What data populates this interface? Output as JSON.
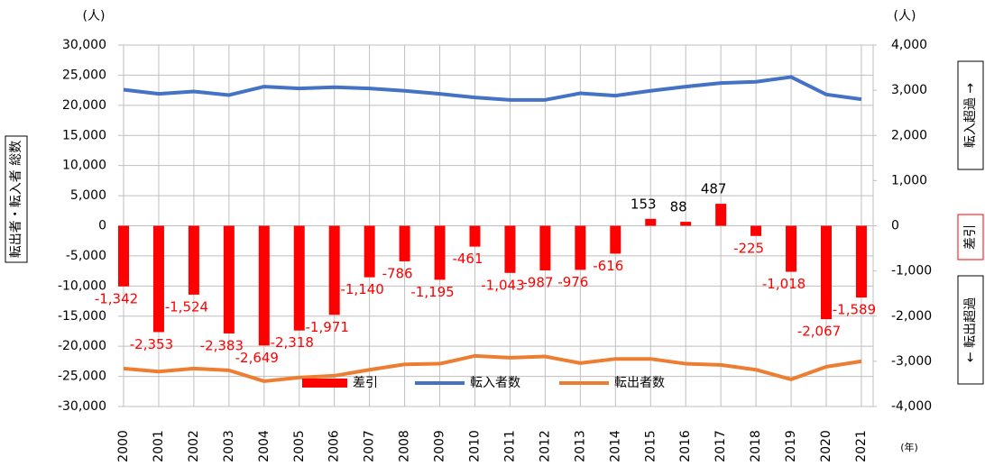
{
  "chart_data": {
    "type": "bar_line",
    "y_unit": "(人)",
    "y2_unit": "(人)",
    "x_unit": "(年)",
    "y_label": "転出者・転入者 総数",
    "y2_label_top": "転入超過 →",
    "y2_label_mid": "差引",
    "y2_label_bottom": "← 転出超過",
    "categories": [
      "2000",
      "2001",
      "2002",
      "2003",
      "2004",
      "2005",
      "2006",
      "2007",
      "2008",
      "2009",
      "2010",
      "2011",
      "2012",
      "2013",
      "2014",
      "2015",
      "2016",
      "2017",
      "2018",
      "2019",
      "2020",
      "2021"
    ],
    "series": [
      {
        "name": "差引",
        "type": "bar",
        "axis": "y2",
        "color": "#ff0000",
        "values": [
          -1342,
          -2353,
          -1524,
          -2383,
          -2649,
          -2318,
          -1971,
          -1140,
          -786,
          -1195,
          -461,
          -1043,
          -987,
          -976,
          -616,
          153,
          88,
          487,
          -225,
          -1018,
          -2067,
          -1589
        ],
        "value_labels": [
          "-1,342",
          "-2,353",
          "-1,524",
          "-2,383",
          "-2,649",
          "-2,318",
          "-1,971",
          "-1,140",
          "-786",
          "-1,195",
          "-461",
          "-1,043",
          "-987",
          "-976",
          "-616",
          "153",
          "88",
          "487",
          "-225",
          "-1,018",
          "-2,067",
          "-1,589"
        ]
      },
      {
        "name": "転入者数",
        "type": "line",
        "axis": "y",
        "color": "#4472c4",
        "values": [
          22600,
          21900,
          22300,
          21700,
          23100,
          22800,
          23000,
          22800,
          22400,
          21900,
          21300,
          20900,
          20900,
          22000,
          21600,
          22400,
          23100,
          23700,
          23900,
          24700,
          21800,
          21000
        ]
      },
      {
        "name": "転出者数",
        "type": "line",
        "axis": "y",
        "color": "#ed7d31",
        "values": [
          -23700,
          -24200,
          -23700,
          -24000,
          -25800,
          -25200,
          -24900,
          -23900,
          -23000,
          -22900,
          -21600,
          -21900,
          -21700,
          -22800,
          -22100,
          -22100,
          -22900,
          -23100,
          -23900,
          -25500,
          -23400,
          -22500
        ]
      }
    ],
    "ylim": [
      -30000,
      30000
    ],
    "yticks": [
      {
        "value": 30000,
        "label": "30,000"
      },
      {
        "value": 25000,
        "label": "25,000"
      },
      {
        "value": 20000,
        "label": "20,000"
      },
      {
        "value": 15000,
        "label": "15,000"
      },
      {
        "value": 10000,
        "label": "10,000"
      },
      {
        "value": 5000,
        "label": "5,000"
      },
      0,
      {
        "value": -5000,
        "label": "-5,000"
      },
      {
        "value": -10000,
        "label": "-10,000"
      },
      {
        "value": -15000,
        "label": "-15,000"
      },
      {
        "value": -20000,
        "label": "-20,000"
      },
      {
        "value": -25000,
        "label": "-25,000"
      },
      {
        "value": -30000,
        "label": "-30,000"
      }
    ],
    "y2lim": [
      -4000,
      4000
    ],
    "y2ticks": [
      {
        "value": 4000,
        "label": "4,000"
      },
      {
        "value": 3000,
        "label": "3,000"
      },
      {
        "value": 2000,
        "label": "2,000"
      },
      {
        "value": 1000,
        "label": "1,000"
      },
      0,
      {
        "value": -1000,
        "label": "-1,000"
      },
      {
        "value": -2000,
        "label": "-2,000"
      },
      {
        "value": -3000,
        "label": "-3,000"
      },
      {
        "value": -4000,
        "label": "-4,000"
      }
    ],
    "grid": true
  }
}
